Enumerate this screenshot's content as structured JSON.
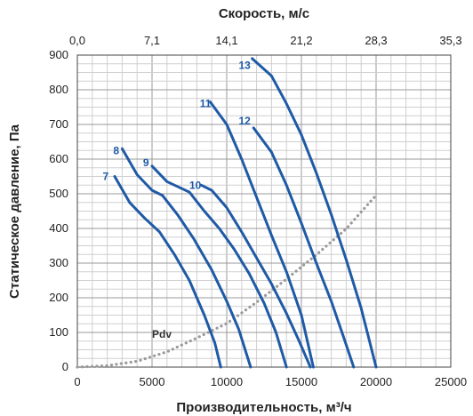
{
  "chart_data": {
    "type": "line",
    "top_axis": {
      "label": "Скорость, м/с",
      "ticks": [
        "0,0",
        "7,1",
        "14,1",
        "21,2",
        "28,3",
        "35,3"
      ]
    },
    "xlabel": "Производительность, м³/ч",
    "ylabel": "Статическое давление, Па",
    "xlim": [
      0,
      25000
    ],
    "ylim": [
      0,
      900
    ],
    "x_ticks": [
      "0",
      "5000",
      "10000",
      "15000",
      "20000",
      "25000"
    ],
    "y_ticks": [
      "0",
      "100",
      "200",
      "300",
      "400",
      "500",
      "600",
      "700",
      "800",
      "900"
    ],
    "grid": true,
    "colors": {
      "series": "#1f5aa6",
      "pdv": "#9a9a9a",
      "grid_major": "#9a9a9a",
      "grid_minor": "#cfcfcf"
    },
    "series": [
      {
        "name": "7",
        "label_at": [
          1700,
          550
        ],
        "points": [
          [
            2500,
            550
          ],
          [
            3500,
            475
          ],
          [
            4500,
            430
          ],
          [
            5500,
            390
          ],
          [
            6500,
            325
          ],
          [
            7500,
            250
          ],
          [
            8500,
            150
          ],
          [
            9200,
            70
          ],
          [
            9600,
            0
          ]
        ]
      },
      {
        "name": "8",
        "label_at": [
          2400,
          625
        ],
        "points": [
          [
            3000,
            630
          ],
          [
            4000,
            555
          ],
          [
            5000,
            510
          ],
          [
            5700,
            495
          ],
          [
            6700,
            440
          ],
          [
            7800,
            370
          ],
          [
            9000,
            280
          ],
          [
            10000,
            190
          ],
          [
            10800,
            110
          ],
          [
            11600,
            0
          ]
        ]
      },
      {
        "name": "9",
        "label_at": [
          4400,
          590
        ],
        "points": [
          [
            5000,
            580
          ],
          [
            6000,
            535
          ],
          [
            7000,
            515
          ],
          [
            7500,
            505
          ],
          [
            8500,
            450
          ],
          [
            9500,
            400
          ],
          [
            10500,
            340
          ],
          [
            11500,
            270
          ],
          [
            12500,
            185
          ],
          [
            13300,
            100
          ],
          [
            14000,
            0
          ]
        ]
      },
      {
        "name": "10",
        "label_at": [
          7500,
          525
        ],
        "points": [
          [
            8300,
            525
          ],
          [
            9000,
            510
          ],
          [
            10000,
            460
          ],
          [
            11000,
            390
          ],
          [
            12000,
            315
          ],
          [
            13000,
            240
          ],
          [
            14000,
            155
          ],
          [
            14800,
            80
          ],
          [
            15600,
            0
          ]
        ]
      },
      {
        "name": "11",
        "label_at": [
          8200,
          760
        ],
        "points": [
          [
            8900,
            765
          ],
          [
            10000,
            700
          ],
          [
            11000,
            600
          ],
          [
            12000,
            490
          ],
          [
            13000,
            380
          ],
          [
            14000,
            275
          ],
          [
            15000,
            150
          ],
          [
            15800,
            0
          ]
        ]
      },
      {
        "name": "12",
        "label_at": [
          10800,
          710
        ],
        "points": [
          [
            11800,
            690
          ],
          [
            13000,
            620
          ],
          [
            14000,
            525
          ],
          [
            15000,
            415
          ],
          [
            16000,
            300
          ],
          [
            17000,
            190
          ],
          [
            17800,
            90
          ],
          [
            18500,
            0
          ]
        ]
      },
      {
        "name": "13",
        "label_at": [
          10800,
          870
        ],
        "points": [
          [
            11700,
            890
          ],
          [
            13000,
            840
          ],
          [
            14000,
            760
          ],
          [
            15000,
            670
          ],
          [
            16000,
            560
          ],
          [
            17000,
            440
          ],
          [
            18000,
            310
          ],
          [
            19000,
            170
          ],
          [
            20000,
            0
          ]
        ]
      }
    ],
    "pdv": {
      "name": "Pdv",
      "label_at": [
        5000,
        85
      ],
      "points": [
        [
          0,
          0
        ],
        [
          2000,
          4
        ],
        [
          4000,
          17
        ],
        [
          6000,
          44
        ],
        [
          8000,
          84
        ],
        [
          10000,
          126
        ],
        [
          12000,
          187
        ],
        [
          14000,
          254
        ],
        [
          16000,
          324
        ],
        [
          18000,
          399
        ],
        [
          20000,
          496
        ]
      ]
    }
  }
}
